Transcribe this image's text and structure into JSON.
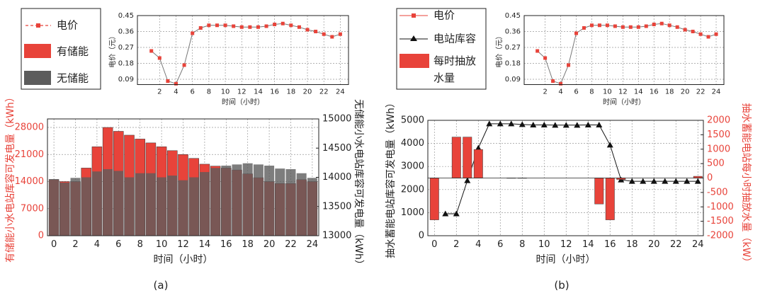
{
  "chart_data": [
    {
      "type": "line",
      "xlabel": "时间（小时）",
      "ylabel": "电价（元）",
      "x": [
        1,
        2,
        3,
        4,
        5,
        6,
        7,
        8,
        9,
        10,
        11,
        12,
        13,
        14,
        15,
        16,
        17,
        18,
        19,
        20,
        21,
        22,
        23,
        24
      ],
      "series": [
        {
          "name": "电价",
          "color": "#e8433a",
          "marker": "square",
          "values": [
            0.25,
            0.21,
            0.08,
            0.065,
            0.17,
            0.35,
            0.38,
            0.395,
            0.395,
            0.395,
            0.39,
            0.385,
            0.385,
            0.385,
            0.39,
            0.4,
            0.405,
            0.395,
            0.385,
            0.37,
            0.36,
            0.345,
            0.33,
            0.345
          ]
        }
      ],
      "xlim": [
        -0.7,
        25
      ],
      "xticks": [
        2,
        4,
        6,
        8,
        10,
        12,
        14,
        16,
        18,
        20,
        22,
        24
      ],
      "ylim": [
        0.06,
        0.45
      ],
      "yticks": [
        0.09,
        0.18,
        0.27,
        0.36,
        0.45
      ],
      "grid": true
    },
    {
      "type": "bar",
      "xlabel": "时间（小时）",
      "ylabel": "有储能小水电站库容可发电量（kWh）",
      "y2label": "无储能小水电站库容可发电量（kWh）",
      "label": "(a)",
      "y_axis_color": "#e8433a",
      "y2_axis_color": "#222",
      "x": [
        0,
        1,
        2,
        3,
        4,
        5,
        6,
        7,
        8,
        9,
        10,
        11,
        12,
        13,
        14,
        15,
        16,
        17,
        18,
        19,
        20,
        21,
        22,
        23,
        24
      ],
      "series": [
        {
          "name": "有储能",
          "color": "#e8433a",
          "values": [
            14500,
            14000,
            14000,
            17500,
            23000,
            28000,
            27000,
            26000,
            25000,
            24000,
            23000,
            22000,
            21000,
            20000,
            18500,
            18000,
            17500,
            17000,
            16000,
            15000,
            14000,
            13500,
            13500,
            14500,
            14000
          ]
        },
        {
          "name": "无储能",
          "color": "#5c5c5c",
          "axis": "y2",
          "values": [
            13970,
            13910,
            13990,
            14000,
            14100,
            14140,
            14110,
            14000,
            14070,
            14070,
            14000,
            14030,
            13950,
            14000,
            14090,
            14160,
            14200,
            14220,
            14240,
            14220,
            14200,
            14150,
            14140,
            14070,
            13990
          ]
        }
      ],
      "xlim": [
        -0.6,
        24.6
      ],
      "xticks": [
        0,
        2,
        4,
        6,
        8,
        10,
        12,
        14,
        16,
        18,
        20,
        22,
        24
      ],
      "ylim": [
        0,
        30200
      ],
      "yticks": [
        0,
        7000,
        14000,
        21000,
        28000
      ],
      "y2lim": [
        13000,
        15000
      ],
      "y2ticks": [
        13000,
        13500,
        14000,
        14500,
        15000
      ],
      "grid": true
    },
    {
      "type": "line",
      "xlabel": "时间（小时）",
      "ylabel": "电价（元）",
      "x": [
        1,
        2,
        3,
        4,
        5,
        6,
        7,
        8,
        9,
        10,
        11,
        12,
        13,
        14,
        15,
        16,
        17,
        18,
        19,
        20,
        21,
        22,
        23,
        24
      ],
      "series": [
        {
          "name": "电价",
          "color": "#e8433a",
          "marker": "square",
          "values": [
            0.25,
            0.21,
            0.08,
            0.065,
            0.17,
            0.35,
            0.38,
            0.395,
            0.395,
            0.395,
            0.39,
            0.385,
            0.385,
            0.385,
            0.39,
            0.4,
            0.405,
            0.395,
            0.385,
            0.37,
            0.36,
            0.345,
            0.33,
            0.345
          ]
        }
      ],
      "xlim": [
        -0.7,
        25
      ],
      "xticks": [
        2,
        4,
        6,
        8,
        10,
        12,
        14,
        16,
        18,
        20,
        22,
        24
      ],
      "ylim": [
        0.06,
        0.45
      ],
      "yticks": [
        0.09,
        0.18,
        0.27,
        0.36,
        0.45
      ],
      "grid": true
    },
    {
      "type": "combo",
      "xlabel": "时间（小时）",
      "ylabel": "抽水蓄能电站库容可发电量（kWh）",
      "y2label": "抽水蓄能电站每小时抽放水量（kW）",
      "label": "(b)",
      "y_axis_color": "#222",
      "y2_axis_color": "#e8433a",
      "x": [
        0,
        1,
        2,
        3,
        4,
        5,
        6,
        7,
        8,
        9,
        10,
        11,
        12,
        13,
        14,
        15,
        16,
        17,
        18,
        19,
        20,
        21,
        22,
        23,
        24
      ],
      "series": [
        {
          "name": "电站库容",
          "type": "line",
          "color": "#111",
          "marker": "triangle",
          "values": [
            null,
            950,
            950,
            2390,
            3800,
            4850,
            4850,
            4850,
            4820,
            4800,
            4800,
            4790,
            4790,
            4790,
            4800,
            4800,
            3930,
            2420,
            2360,
            2360,
            2360,
            2360,
            2360,
            2360,
            2360
          ]
        },
        {
          "name": "每时抽放水量",
          "type": "bar",
          "color": "#e8433a",
          "axis": "y2",
          "values": [
            -1450,
            0,
            1420,
            1420,
            990,
            0,
            0,
            -10,
            -10,
            0,
            0,
            0,
            0,
            0,
            0,
            -900,
            -1450,
            -50,
            0,
            0,
            0,
            0,
            0,
            0,
            60
          ]
        }
      ],
      "xlim": [
        -0.6,
        24.5
      ],
      "xticks": [
        0,
        2,
        4,
        6,
        8,
        10,
        12,
        14,
        16,
        18,
        20,
        22,
        24
      ],
      "ylim": [
        0,
        5000
      ],
      "yticks": [
        0,
        1000,
        2000,
        3000,
        4000,
        5000
      ],
      "y2lim": [
        -2000,
        2000
      ],
      "y2ticks": [
        -2000,
        -1500,
        -1000,
        -500,
        0,
        500,
        1000,
        1500,
        2000
      ],
      "grid": true
    }
  ]
}
